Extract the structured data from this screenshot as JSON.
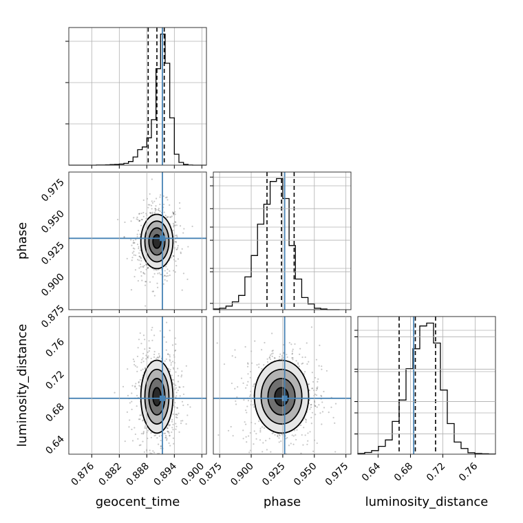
{
  "chart_data": {
    "type": "corner",
    "title": "",
    "parameters": [
      "geocent_time",
      "phase",
      "luminosity_distance"
    ],
    "ranges": {
      "geocent_time": [
        0.871,
        0.901
      ],
      "phase": [
        0.87,
        0.979
      ],
      "luminosity_distance": [
        0.615,
        0.785
      ]
    },
    "ticks": {
      "geocent_time": [
        "0.876",
        "0.882",
        "0.888",
        "0.894",
        "0.900"
      ],
      "phase": [
        "0.875",
        "0.900",
        "0.925",
        "0.950",
        "0.975"
      ],
      "luminosity_distance": [
        "0.64",
        "0.68",
        "0.72",
        "0.76"
      ]
    },
    "truths": {
      "geocent_time": 0.8914,
      "phase": 0.9265,
      "luminosity_distance": 0.684
    },
    "quantiles": {
      "geocent_time": [
        0.8883,
        0.8902,
        0.8918
      ],
      "phase": [
        0.9125,
        0.924,
        0.934
      ],
      "luminosity_distance": [
        0.666,
        0.686,
        0.711
      ]
    },
    "histograms": {
      "geocent_time": {
        "edges": [
          0.871,
          0.872,
          0.873,
          0.874,
          0.875,
          0.876,
          0.877,
          0.878,
          0.879,
          0.88,
          0.881,
          0.882,
          0.883,
          0.884,
          0.885,
          0.886,
          0.887,
          0.888,
          0.889,
          0.89,
          0.891,
          0.892,
          0.893,
          0.894,
          0.895,
          0.896,
          0.897,
          0.898,
          0.899,
          0.9,
          0.901
        ],
        "counts": [
          0,
          0,
          0,
          0,
          0,
          0,
          1,
          1,
          2,
          3,
          4,
          6,
          10,
          20,
          45,
          85,
          100,
          150,
          250,
          530,
          720,
          560,
          260,
          60,
          15,
          4,
          1,
          0,
          0,
          0
        ]
      },
      "phase": {
        "edges": [
          0.87,
          0.875,
          0.88,
          0.885,
          0.89,
          0.895,
          0.9,
          0.905,
          0.91,
          0.915,
          0.92,
          0.925,
          0.93,
          0.935,
          0.94,
          0.945,
          0.95,
          0.955,
          0.96,
          0.965,
          0.97
        ],
        "counts": [
          5,
          10,
          25,
          55,
          100,
          230,
          380,
          600,
          740,
          900,
          920,
          780,
          450,
          215,
          85,
          40,
          10,
          5,
          0,
          0
        ]
      },
      "luminosity_distance": {
        "edges": [
          0.615,
          0.6235,
          0.632,
          0.6405,
          0.649,
          0.6575,
          0.666,
          0.6745,
          0.683,
          0.6915,
          0.7,
          0.7085,
          0.717,
          0.7255,
          0.734,
          0.7425,
          0.751,
          0.7595,
          0.768,
          0.7765,
          0.785
        ],
        "counts": [
          5,
          12,
          25,
          55,
          100,
          230,
          380,
          600,
          740,
          900,
          920,
          780,
          450,
          215,
          85,
          40,
          10,
          5,
          3,
          1
        ]
      }
    },
    "contour_levels": [
      "0.5",
      "1.0",
      "1.5",
      "2.0"
    ]
  }
}
